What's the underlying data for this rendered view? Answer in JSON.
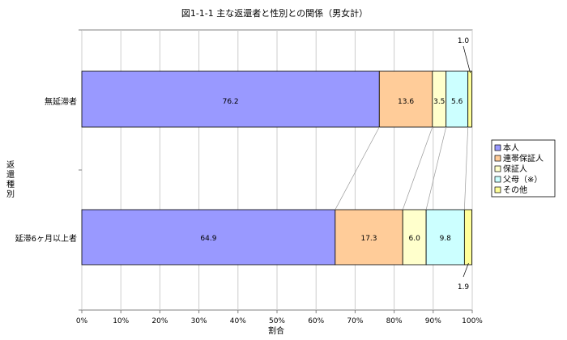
{
  "chart_data": {
    "type": "bar",
    "orientation": "horizontal",
    "stacked": true,
    "percent": true,
    "title": "図1-1-1  主な返還者と性別との関係（男女計）",
    "xlabel": "割合",
    "ylabel": "返還種別",
    "xlim": [
      0,
      100
    ],
    "x_ticks": [
      "0%",
      "10%",
      "20%",
      "30%",
      "40%",
      "50%",
      "60%",
      "70%",
      "80%",
      "90%",
      "100%"
    ],
    "grid": true,
    "legend_position": "right",
    "categories": [
      "無延滞者",
      "延滞6ヶ月以上者"
    ],
    "series": [
      {
        "name": "本人",
        "color": "#9999FF",
        "values": [
          76.2,
          64.9
        ],
        "labels": [
          "76.2",
          "64.9"
        ]
      },
      {
        "name": "連帯保証人",
        "color": "#FFCC99",
        "values": [
          13.6,
          17.3
        ],
        "labels": [
          "13.6",
          "17.3"
        ]
      },
      {
        "name": "保証人",
        "color": "#FFFFCC",
        "values": [
          3.5,
          6.0
        ],
        "labels": [
          "3.5",
          "6.0"
        ]
      },
      {
        "name": "父母（※）",
        "color": "#CCFFFF",
        "values": [
          5.6,
          9.8
        ],
        "labels": [
          "5.6",
          "9.8"
        ]
      },
      {
        "name": "その他",
        "color": "#FFFF99",
        "values": [
          1.0,
          1.9
        ],
        "labels": [
          "1.0",
          "1.9"
        ]
      }
    ]
  }
}
